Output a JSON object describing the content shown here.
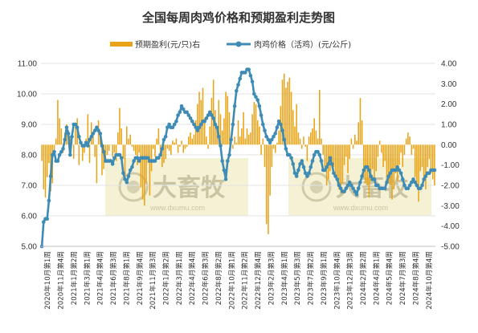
{
  "chart_data": {
    "type": "bar+line",
    "title": "全国每周肉鸡价格和预期盈利走势图",
    "legend": {
      "position": "top"
    },
    "series": [
      {
        "name": "预期盈利(元/只)右",
        "type": "bar",
        "axis": "right",
        "color": "#e8a317",
        "values": [
          -0.8,
          -2.2,
          -2.6,
          -1.6,
          -0.9,
          -2.3,
          -1.9,
          -0.5,
          0.3,
          2.2,
          1.3,
          0.8,
          -0.4,
          0.6,
          1.0,
          0.7,
          0.4,
          0.2,
          -0.7,
          0.9,
          1.3,
          -1.0,
          0.2,
          -0.8,
          -0.4,
          0.3,
          1.5,
          -0.9,
          1.1,
          0.6,
          -0.6,
          -1.9,
          1.2,
          0.4,
          -1.5,
          -1.2,
          -0.9,
          -0.5,
          -0.3,
          0.0,
          -0.6,
          -0.4,
          -0.8,
          0.6,
          1.8,
          0.8,
          -0.7,
          -1.6,
          0.9,
          0.3,
          0.5,
          -0.1,
          -0.3,
          -0.5,
          -1.0,
          -0.4,
          -2.1,
          -2.7,
          -3.0,
          -1.9,
          -0.9,
          -2.5,
          -1.3,
          -0.2,
          -0.6,
          0.3,
          0.8,
          -0.4,
          -1.1,
          -0.9,
          -0.7,
          -0.2,
          -0.3,
          -0.5,
          0.2,
          0.1,
          0.3,
          -0.4,
          -0.1,
          0.2,
          -0.4,
          -0.2,
          -0.1,
          0.4,
          0.6,
          0.3,
          0.5,
          1.2,
          2.0,
          2.6,
          2.2,
          2.8,
          1.3,
          0.4,
          -0.2,
          0.9,
          2.3,
          3.2,
          1.7,
          0.8,
          2.2,
          1.5,
          0.7,
          1.3,
          2.6,
          2.4,
          1.6,
          0.4,
          -0.2,
          0.4,
          0.1,
          1.2,
          0.4,
          0.8,
          1.6,
          0.3,
          0.8,
          0.5,
          0.6,
          1.5,
          2.1,
          2.0,
          1.2,
          0.9,
          -0.5,
          0.3,
          -1.1,
          -3.9,
          -4.4,
          -2.5,
          -1.1,
          -0.2,
          -0.4,
          0.1,
          0.7,
          1.9,
          3.2,
          3.5,
          2.8,
          3.1,
          3.3,
          2.6,
          1.7,
          0.9,
          2.0,
          0.6,
          0.3,
          -0.2,
          0.4,
          -0.1,
          -0.8,
          0.4,
          0.6,
          0.8,
          1.3,
          0.7,
          0.3,
          2.7,
          0.3,
          -0.5,
          -1.2,
          -2.0,
          -1.7,
          -1.3,
          -0.8,
          -1.1,
          -1.5,
          -1.6,
          -2.2,
          -2.4,
          -1.9,
          -1.0,
          -0.6,
          -1.4,
          -0.7,
          0.3,
          -0.2,
          0.5,
          0.2,
          1.1,
          2.3,
          1.2,
          -1.6,
          -1.9,
          -2.0,
          -2.6,
          -1.8,
          -1.2,
          -1.9,
          -1.3,
          -0.6,
          0.2,
          -0.4,
          -1.1,
          -0.8,
          -1.6,
          -1.9,
          -2.0,
          -2.7,
          -2.2,
          -1.4,
          -1.8,
          -1.0,
          -0.4,
          -1.1,
          -0.5,
          0.3,
          0.6,
          0.4,
          -0.5,
          -0.2,
          -1.6,
          -1.9,
          -2.8,
          -1.3,
          -1.1,
          -1.7,
          -2.2,
          -1.1,
          -0.7,
          -1.4,
          -1.7,
          -2.0
        ]
      },
      {
        "name": "肉鸡价格（活鸡）(元/公斤)",
        "type": "line",
        "axis": "left",
        "color": "#3e8cb5",
        "values": [
          5.0,
          5.8,
          5.9,
          5.9,
          6.5,
          7.3,
          8.0,
          8.1,
          7.8,
          7.8,
          8.0,
          8.1,
          8.2,
          8.5,
          8.9,
          8.7,
          8.0,
          8.6,
          9.0,
          9.0,
          8.9,
          8.6,
          8.4,
          8.3,
          8.3,
          8.4,
          8.3,
          8.5,
          8.6,
          8.7,
          8.8,
          8.9,
          8.8,
          8.7,
          8.3,
          8.1,
          7.8,
          7.8,
          7.8,
          7.8,
          7.7,
          7.9,
          8.0,
          8.0,
          8.0,
          7.9,
          7.4,
          7.2,
          7.1,
          7.3,
          7.5,
          7.6,
          7.8,
          7.9,
          7.9,
          7.8,
          7.9,
          7.9,
          7.9,
          7.9,
          7.9,
          7.8,
          7.8,
          7.8,
          7.8,
          7.9,
          7.9,
          8.0,
          8.2,
          8.5,
          8.6,
          8.9,
          9.0,
          8.9,
          8.9,
          9.0,
          9.1,
          9.3,
          9.4,
          9.6,
          9.5,
          9.4,
          9.4,
          9.3,
          9.2,
          9.1,
          9.0,
          8.9,
          8.8,
          8.9,
          9.0,
          9.1,
          9.1,
          9.2,
          9.3,
          9.4,
          9.3,
          9.2,
          9.0,
          8.9,
          8.6,
          8.3,
          7.8,
          7.5,
          7.2,
          7.8,
          8.0,
          8.5,
          9.0,
          9.6,
          10.1,
          10.3,
          10.5,
          10.7,
          10.7,
          10.7,
          10.8,
          10.8,
          10.6,
          10.4,
          10.0,
          9.9,
          9.8,
          9.6,
          9.3,
          9.0,
          8.8,
          8.6,
          8.5,
          8.4,
          8.5,
          8.6,
          8.7,
          8.9,
          9.1,
          9.0,
          8.8,
          8.5,
          8.2,
          8.0,
          8.0,
          7.9,
          7.7,
          7.4,
          7.3,
          7.5,
          7.7,
          7.8,
          7.6,
          7.4,
          7.3,
          7.4,
          7.6,
          7.8,
          8.0,
          8.1,
          8.1,
          8.0,
          7.8,
          7.5,
          7.5,
          7.6,
          7.7,
          7.9,
          7.7,
          7.4,
          7.3,
          7.2,
          7.0,
          6.9,
          6.8,
          6.8,
          6.9,
          7.0,
          7.1,
          7.0,
          6.9,
          6.8,
          6.7,
          6.9,
          7.1,
          7.3,
          7.5,
          7.6,
          7.6,
          7.5,
          7.3,
          7.2,
          7.2,
          7.0,
          7.0,
          6.9,
          6.9,
          6.9,
          6.9,
          7.1,
          7.3,
          7.4,
          7.5,
          7.5,
          7.5,
          7.6,
          7.5,
          7.4,
          7.2,
          7.0,
          6.9,
          6.9,
          7.0,
          7.1,
          7.2,
          7.1,
          7.0,
          6.9,
          6.9,
          7.0,
          7.2,
          7.3,
          7.4,
          7.4,
          7.5,
          7.5,
          7.5
        ]
      }
    ],
    "y_left": {
      "min": 5.0,
      "max": 11.0,
      "ticks": [
        "5.00",
        "6.00",
        "7.00",
        "8.00",
        "9.00",
        "10.00",
        "11.00"
      ]
    },
    "y_right": {
      "min": -5.0,
      "max": 4.0,
      "ticks": [
        "-5.00",
        "-4.00",
        "-3.00",
        "-2.00",
        "-1.00",
        "0.00",
        "1.00",
        "2.00",
        "3.00",
        "4.00"
      ]
    },
    "x_labels": [
      "2020年10月第1周",
      "2020年11月第4周",
      "2021年1月第2周",
      "2021年3月第1周",
      "2021年4月第4周",
      "2021年6月第3周",
      "2021年8月第1周",
      "2021年9月第4周",
      "2021年11月第3周",
      "2022年1月第2周",
      "2022年3月第1周",
      "2022年4月第4周",
      "2022年6月第3周",
      "2022年8月第2周",
      "2022年10月第1周",
      "2022年11月第2周",
      "2022年12月第4周",
      "2023年2月第3周",
      "2023年4月第1周",
      "2023年5月第3周",
      "2023年7月第2周",
      "2023年9月第1周",
      "2023年10月第4周",
      "2023年12月第3周",
      "2024年2月第2周",
      "2024年4月第1周",
      "2024年5月第4周",
      "2024年7月第3周",
      "2024年8月第4周",
      "2024年10月第4周"
    ],
    "watermark": {
      "brand": "大畜牧",
      "url": "www.dxumu.com"
    }
  }
}
